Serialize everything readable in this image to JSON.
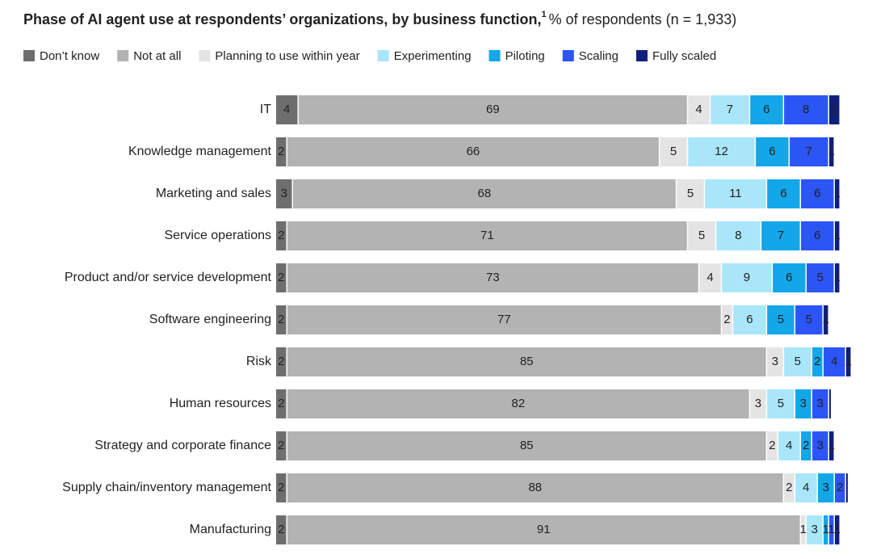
{
  "chart_data": {
    "type": "stacked-bar-horizontal",
    "title": "Phase of AI agent use at respondents’ organizations, by business function,",
    "title_footnote": "1",
    "subtitle": "% of respondents (n = 1,933)",
    "categories": [
      "IT",
      "Knowledge management",
      "Marketing and sales",
      "Service operations",
      "Product and/or service development",
      "Software engineering",
      "Risk",
      "Human resources",
      "Strategy and corporate finance",
      "Supply chain/inventory management",
      "Manufacturing"
    ],
    "series": [
      {
        "name": "Don’t know",
        "color": "#6e6e6e",
        "values": [
          4,
          2,
          3,
          2,
          2,
          2,
          2,
          2,
          2,
          2,
          2
        ]
      },
      {
        "name": "Not at all",
        "color": "#b3b3b3",
        "values": [
          69,
          66,
          68,
          71,
          73,
          77,
          85,
          82,
          85,
          88,
          91
        ]
      },
      {
        "name": "Planning to use within year",
        "color": "#e4e4e4",
        "values": [
          4,
          5,
          5,
          5,
          4,
          2,
          3,
          3,
          2,
          2,
          1
        ]
      },
      {
        "name": "Experimenting",
        "color": "#a9e6fa",
        "values": [
          7,
          12,
          11,
          8,
          9,
          6,
          5,
          5,
          4,
          4,
          3
        ]
      },
      {
        "name": "Piloting",
        "color": "#13a6e8",
        "values": [
          6,
          6,
          6,
          7,
          6,
          5,
          2,
          3,
          2,
          3,
          1
        ]
      },
      {
        "name": "Scaling",
        "color": "#2b55f5",
        "values": [
          8,
          7,
          6,
          6,
          5,
          5,
          4,
          3,
          3,
          2,
          1
        ]
      },
      {
        "name": "Fully scaled",
        "color": "#0f1f7a",
        "values": [
          2,
          1,
          1,
          1,
          1,
          1,
          1,
          0.5,
          1,
          0.5,
          1
        ],
        "value_labels": [
          "2",
          "1",
          "1",
          "1",
          "1",
          "1",
          "1",
          null,
          "1",
          null,
          "1"
        ]
      }
    ],
    "legend": "top-left"
  }
}
